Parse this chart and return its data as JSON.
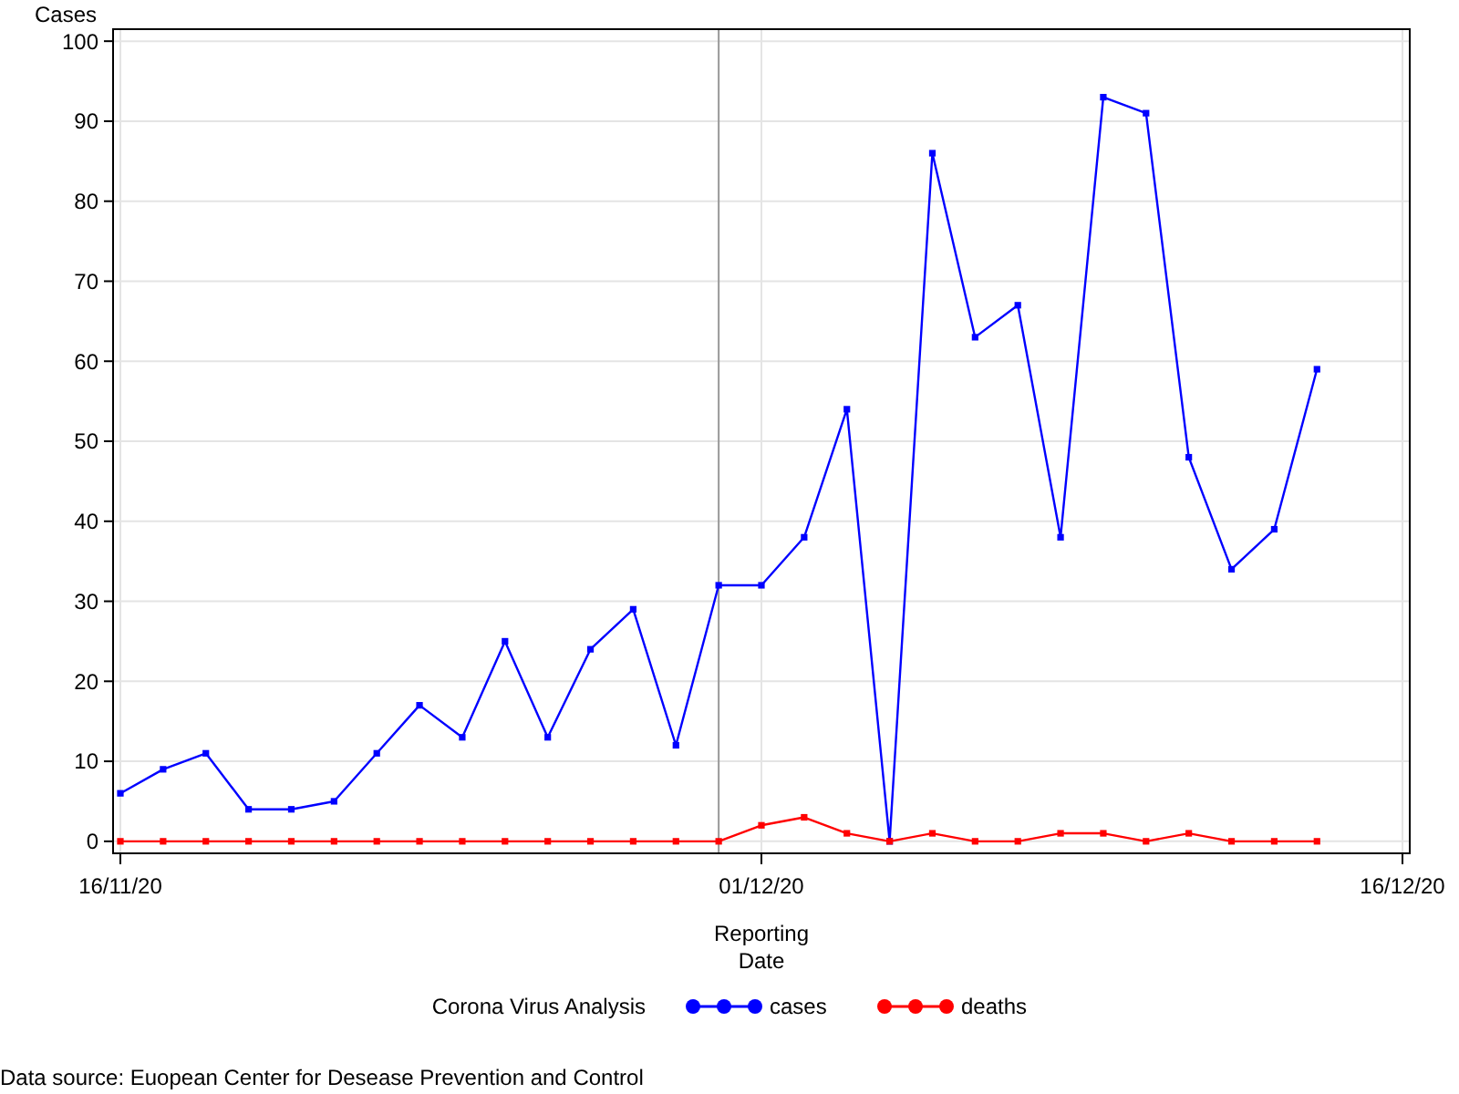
{
  "chart_data": {
    "type": "line",
    "ylabel": "Cases",
    "xlabel": "Reporting Date",
    "legend_title": "Corona Virus Analysis",
    "x": [
      "2020-11-16",
      "2020-11-17",
      "2020-11-18",
      "2020-11-19",
      "2020-11-20",
      "2020-11-21",
      "2020-11-22",
      "2020-11-23",
      "2020-11-24",
      "2020-11-25",
      "2020-11-26",
      "2020-11-27",
      "2020-11-28",
      "2020-11-29",
      "2020-11-30",
      "2020-12-01",
      "2020-12-02",
      "2020-12-03",
      "2020-12-04",
      "2020-12-05",
      "2020-12-06",
      "2020-12-07",
      "2020-12-08",
      "2020-12-09",
      "2020-12-10",
      "2020-12-11",
      "2020-12-12",
      "2020-12-13",
      "2020-12-14"
    ],
    "series": [
      {
        "name": "cases",
        "color": "#0000ff",
        "values": [
          6,
          9,
          11,
          4,
          4,
          5,
          11,
          17,
          13,
          25,
          13,
          24,
          29,
          12,
          32,
          32,
          38,
          54,
          0,
          86,
          63,
          67,
          38,
          93,
          91,
          48,
          34,
          39,
          59
        ]
      },
      {
        "name": "deaths",
        "color": "#ff0000",
        "values": [
          0,
          0,
          0,
          0,
          0,
          0,
          0,
          0,
          0,
          0,
          0,
          0,
          0,
          0,
          0,
          2,
          3,
          1,
          0,
          1,
          0,
          0,
          1,
          1,
          0,
          1,
          0,
          0,
          0
        ]
      }
    ],
    "xlim": [
      "2020-11-16",
      "2020-12-16"
    ],
    "xticks": [
      {
        "value": "2020-11-16",
        "label": "16/11/20"
      },
      {
        "value": "2020-12-01",
        "label": "01/12/20"
      },
      {
        "value": "2020-12-16",
        "label": "16/12/20"
      }
    ],
    "ylim": [
      -1.5,
      101.5
    ],
    "yticks": [
      0,
      10,
      20,
      30,
      40,
      50,
      60,
      70,
      80,
      90,
      100
    ],
    "ref_lines": [
      {
        "axis": "x",
        "value": "2020-11-30",
        "color": "#999999"
      }
    ],
    "grid": true,
    "legend": "bottom",
    "marker": "square",
    "line_style": "solid",
    "annotations": [
      "Data source: Euopean Center for Desease Prevention and Control"
    ]
  }
}
